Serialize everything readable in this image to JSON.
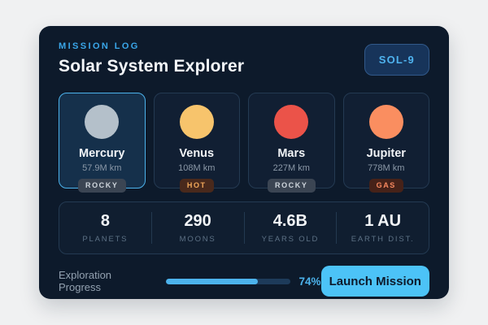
{
  "header": {
    "eyebrow": "MISSION LOG",
    "title": "Solar System Explorer",
    "badge": "SOL-9"
  },
  "planets": [
    {
      "name": "Mercury",
      "distance": "57.9M km",
      "tag": "ROCKY",
      "color": "#b4c0ca",
      "selected": true
    },
    {
      "name": "Venus",
      "distance": "108M km",
      "tag": "HOT",
      "color": "#f7c46c",
      "selected": false
    },
    {
      "name": "Mars",
      "distance": "227M km",
      "tag": "ROCKY",
      "color": "#eb5349",
      "selected": false
    },
    {
      "name": "Jupiter",
      "distance": "778M km",
      "tag": "GAS",
      "color": "#fa8e60",
      "selected": false
    }
  ],
  "stats": [
    {
      "value": "8",
      "label": "PLANETS"
    },
    {
      "value": "290",
      "label": "MOONS"
    },
    {
      "value": "4.6B",
      "label": "YEARS OLD"
    },
    {
      "value": "1 AU",
      "label": "EARTH DIST."
    }
  ],
  "footer": {
    "progress_label": "Exploration Progress",
    "progress_percent": 74,
    "progress_text": "74%",
    "button_label": "Launch Mission"
  },
  "colors": {
    "page_bg": "#f0f1f2",
    "card_bg": "#0d1a2b",
    "accent": "#4cb3ec",
    "button_bg": "#4cc3f7",
    "selected_card_bg": "#15304b",
    "tag_rocky_bg": "#3b4553",
    "tag_hot_bg": "#49291c",
    "tag_gas_bg": "#462219"
  }
}
